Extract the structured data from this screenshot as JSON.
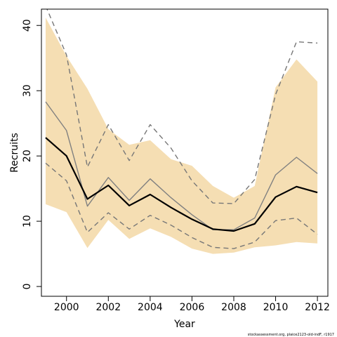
{
  "chart_data": {
    "type": "line",
    "title": "",
    "xlabel": "Year",
    "ylabel": "Recruits",
    "xlim": [
      1998.8,
      2012.5
    ],
    "ylim": [
      -1.5,
      42.5
    ],
    "xticks": [
      2000,
      2002,
      2004,
      2006,
      2008,
      2010,
      2012
    ],
    "yticks": [
      0,
      10,
      20,
      30,
      40
    ],
    "grid": false,
    "legend": "none",
    "x": [
      1999,
      2000,
      2001,
      2002,
      2003,
      2004,
      2005,
      2006,
      2007,
      2008,
      2009,
      2010,
      2011,
      2012
    ],
    "band": {
      "lower": [
        12.6,
        11.4,
        5.9,
        10.2,
        7.3,
        8.9,
        7.6,
        5.8,
        5.0,
        5.2,
        6.0,
        6.3,
        6.8,
        6.6
      ],
      "upper": [
        41.2,
        35.3,
        30.3,
        24.1,
        21.7,
        22.4,
        19.5,
        18.5,
        15.4,
        13.6,
        15.4,
        30.5,
        34.8,
        31.4
      ],
      "color": "#f5deb3"
    },
    "series": [
      {
        "values": [
          22.8,
          20.0,
          13.4,
          15.5,
          12.4,
          14.1,
          12.1,
          10.3,
          8.8,
          8.5,
          9.6,
          13.7,
          15.3,
          14.4
        ],
        "color": "#000000",
        "style": "solid",
        "width": 2.2
      },
      {
        "values": [
          28.3,
          23.9,
          12.3,
          16.7,
          13.2,
          16.5,
          13.6,
          11.0,
          8.7,
          8.7,
          10.5,
          17.1,
          19.8,
          17.3
        ],
        "color": "#808080",
        "style": "solid",
        "width": 1.4
      },
      {
        "values": [
          43.0,
          35.5,
          18.3,
          24.8,
          19.3,
          24.8,
          21.2,
          16.2,
          12.8,
          12.7,
          16.4,
          29.4,
          37.5,
          37.3
        ],
        "color": "#777777",
        "style": "dashed",
        "width": 1.4
      },
      {
        "values": [
          18.9,
          16.2,
          8.3,
          11.3,
          8.8,
          10.9,
          9.4,
          7.5,
          6.0,
          5.8,
          6.8,
          10.1,
          10.5,
          8.0
        ],
        "color": "#777777",
        "style": "dashed",
        "width": 1.4
      }
    ]
  },
  "footnote": "stockassessment.org, plaice2123-old-indF, r1917"
}
